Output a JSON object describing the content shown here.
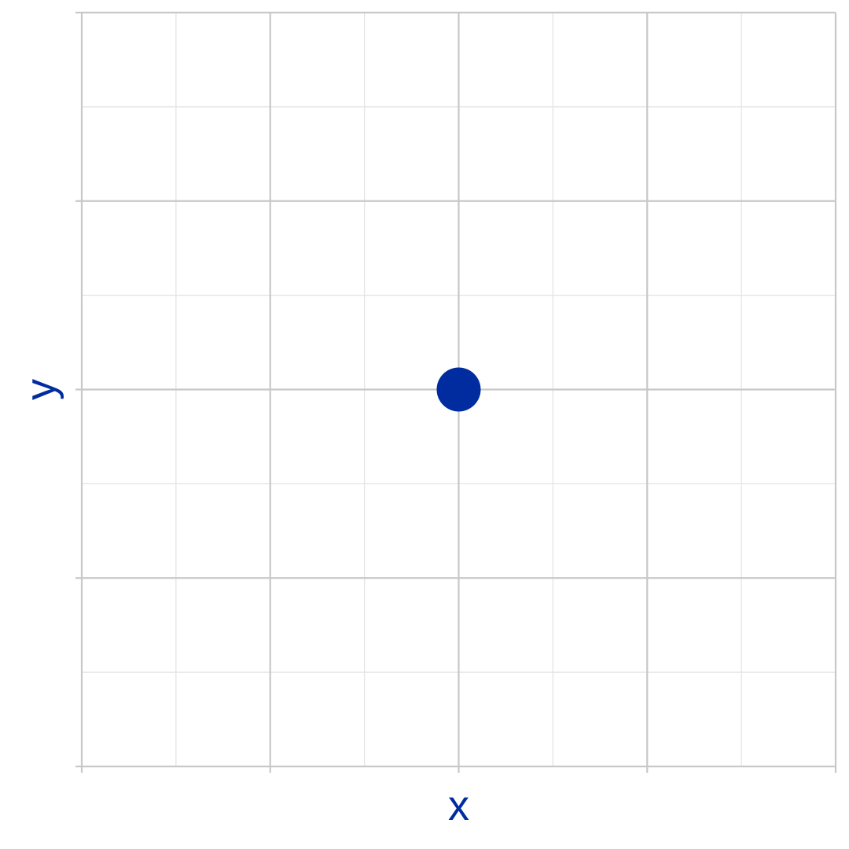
{
  "chart_data": {
    "type": "scatter",
    "title": "",
    "xlabel": "x",
    "ylabel": "y",
    "xlim": [
      -2,
      2
    ],
    "ylim": [
      -2,
      2
    ],
    "major_tick_step": 1,
    "minor_tick_step": 0.5,
    "tick_labels_shown": false,
    "grid": true,
    "legend": "none",
    "series": [
      {
        "x": [
          0
        ],
        "y": [
          0
        ],
        "color": "#002ca0"
      }
    ]
  },
  "colors": {
    "point": "#002ca0",
    "axis_label": "#002ca0",
    "grid_major": "#c8c8c8",
    "grid_minor": "#e3e3e3",
    "background": "#ffffff"
  }
}
